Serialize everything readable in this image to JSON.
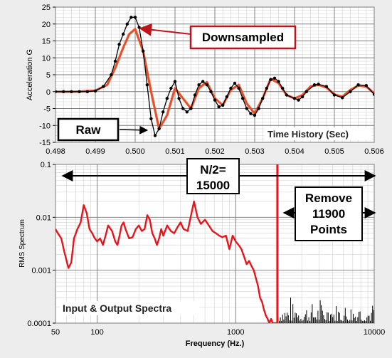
{
  "chart_data": [
    {
      "type": "line",
      "annotation_time": "Time History (Sec)",
      "ylabel": "Acceleration G",
      "xlim": [
        0.498,
        0.506
      ],
      "ylim": [
        -15,
        25
      ],
      "x_tick_labels": [
        "0.498",
        "0.499",
        "0.500",
        "0.501",
        "0.502",
        "0.503",
        "0.504",
        "0.505",
        "0.506"
      ],
      "y_tick_labels": [
        "25",
        "20",
        "15",
        "10",
        "5",
        "0",
        "-5",
        "-10",
        "-15"
      ],
      "grid": true,
      "callouts": {
        "downsampled": "Downsampled",
        "raw": "Raw"
      },
      "colors": {
        "raw": "#000000",
        "downsampled": "#e8502a",
        "callout_border": "#c0141c"
      },
      "series": [
        {
          "key": "raw",
          "x": [
            0.498,
            0.4982,
            0.4984,
            0.4986,
            0.4988,
            0.499,
            0.4992,
            0.4994,
            0.4995,
            0.4996,
            0.4997,
            0.4998,
            0.4999,
            0.5,
            0.5001,
            0.5002,
            0.5003,
            0.5004,
            0.5005,
            0.5006,
            0.5007,
            0.5008,
            0.5009,
            0.501,
            0.5011,
            0.5012,
            0.5013,
            0.5014,
            0.5015,
            0.5016,
            0.5017,
            0.5018,
            0.5019,
            0.502,
            0.5021,
            0.5022,
            0.5023,
            0.5024,
            0.5025,
            0.5026,
            0.5027,
            0.5028,
            0.5029,
            0.503,
            0.5031,
            0.5032,
            0.5033,
            0.5034,
            0.5035,
            0.5036,
            0.5037,
            0.5038,
            0.504,
            0.5041,
            0.5042,
            0.5043,
            0.5045,
            0.5046,
            0.5048,
            0.505,
            0.5052,
            0.5054,
            0.5056,
            0.5058,
            0.506
          ],
          "y": [
            0,
            0,
            0,
            0,
            0,
            0.2,
            1.5,
            5,
            9,
            14,
            17,
            20,
            22,
            22,
            19,
            12,
            2,
            -8,
            -13,
            -11,
            -6,
            -2,
            1,
            3,
            -2,
            -5,
            -6,
            -5,
            -1,
            2,
            3,
            2,
            0,
            -2.5,
            -4.5,
            -4,
            -1.5,
            1,
            2.5,
            1,
            -2,
            -5,
            -6.5,
            -7,
            -5,
            -2,
            1,
            3.5,
            4,
            3,
            1,
            -1,
            -2,
            -2.5,
            -1.5,
            0,
            2,
            2.2,
            1.5,
            -1,
            -1.8,
            0,
            2,
            1.8,
            -0.8
          ]
        },
        {
          "key": "downsampled",
          "x": [
            0.498,
            0.4985,
            0.499,
            0.4993,
            0.4995,
            0.4997,
            0.49985,
            0.5,
            0.5002,
            0.5004,
            0.5006,
            0.5008,
            0.501,
            0.5012,
            0.5014,
            0.5016,
            0.5018,
            0.502,
            0.5022,
            0.5024,
            0.5026,
            0.5028,
            0.503,
            0.5032,
            0.5034,
            0.5036,
            0.5038,
            0.504,
            0.5042,
            0.5044,
            0.5046,
            0.5048,
            0.505,
            0.5052,
            0.5054,
            0.5056,
            0.5058,
            0.506
          ],
          "y": [
            0,
            0,
            0.3,
            2,
            7,
            13,
            17,
            18.5,
            12,
            0,
            -11,
            -7,
            1,
            -2,
            -5,
            1,
            2.8,
            -2,
            -4,
            0.5,
            2,
            -3.5,
            -6.5,
            -2,
            3.8,
            2.5,
            -1,
            -2,
            -1,
            1.5,
            2,
            1.2,
            -0.8,
            -1.5,
            0.5,
            1.8,
            1.5,
            -0.5
          ]
        }
      ]
    },
    {
      "type": "line",
      "annotation_spectra": "Input & Output Spectra",
      "xlabel": "Frequency (Hz.)",
      "ylabel": "RMS Spectrum",
      "x_scale": "log",
      "y_scale": "log",
      "xlim": [
        50,
        10000
      ],
      "ylim": [
        0.0001,
        0.1
      ],
      "x_tick_labels": [
        {
          "value": 50,
          "label": "50"
        },
        {
          "value": 100,
          "label": "100"
        },
        {
          "value": 1000,
          "label": "1000"
        },
        {
          "value": 10000,
          "label": "10000"
        }
      ],
      "y_tick_labels": [
        {
          "value": 0.1,
          "label": "0.1"
        },
        {
          "value": 0.01,
          "label": "0.01"
        },
        {
          "value": 0.001,
          "label": "0.001"
        },
        {
          "value": 0.0001,
          "label": "0.0001"
        }
      ],
      "grid": true,
      "cutoff_frequency": 2000,
      "callouts": {
        "n_half_line1": "N/2=",
        "n_half_line2": "15000",
        "remove_line1": "Remove",
        "remove_line2": "11900",
        "remove_line3": "Points"
      },
      "colors": {
        "spectrum": "#e8141c",
        "cutoff": "#e8141c",
        "above_cutoff": "#000000"
      },
      "series": [
        {
          "key": "spectrum",
          "x": [
            50,
            52,
            55,
            58,
            62,
            65,
            68,
            72,
            76,
            80,
            84,
            88,
            92,
            96,
            100,
            105,
            110,
            115,
            120,
            128,
            135,
            140,
            145,
            150,
            155,
            160,
            170,
            180,
            190,
            200,
            210,
            220,
            230,
            240,
            250,
            260,
            270,
            280,
            290,
            300,
            320,
            340,
            360,
            380,
            400,
            420,
            450,
            480,
            500,
            530,
            560,
            600,
            640,
            680,
            720,
            760,
            800,
            850,
            900,
            950,
            1000,
            1050,
            1100,
            1150,
            1200,
            1250,
            1300,
            1350,
            1400,
            1450,
            1500,
            1550,
            1600,
            1650,
            1700,
            1750,
            1800,
            1850,
            1900,
            1950,
            2000
          ],
          "y": [
            0.006,
            0.005,
            0.004,
            0.0022,
            0.0011,
            0.0014,
            0.004,
            0.006,
            0.008,
            0.017,
            0.012,
            0.006,
            0.005,
            0.004,
            0.0035,
            0.004,
            0.003,
            0.0045,
            0.007,
            0.0055,
            0.0035,
            0.003,
            0.0045,
            0.007,
            0.008,
            0.006,
            0.004,
            0.0042,
            0.006,
            0.007,
            0.0055,
            0.006,
            0.011,
            0.009,
            0.005,
            0.004,
            0.003,
            0.004,
            0.006,
            0.0045,
            0.007,
            0.0055,
            0.005,
            0.0065,
            0.008,
            0.006,
            0.0055,
            0.012,
            0.02,
            0.01,
            0.0075,
            0.009,
            0.007,
            0.0055,
            0.005,
            0.0045,
            0.0042,
            0.0045,
            0.0025,
            0.0045,
            0.0035,
            0.003,
            0.0025,
            0.0018,
            0.0013,
            0.0015,
            0.0012,
            0.001,
            0.0007,
            0.0005,
            0.0003,
            0.00025,
            0.00018,
            0.00014,
            0.00012,
            0.0001,
            0.00012,
            0.0001,
            0.0001,
            0.0001,
            0.0001
          ]
        }
      ]
    }
  ]
}
